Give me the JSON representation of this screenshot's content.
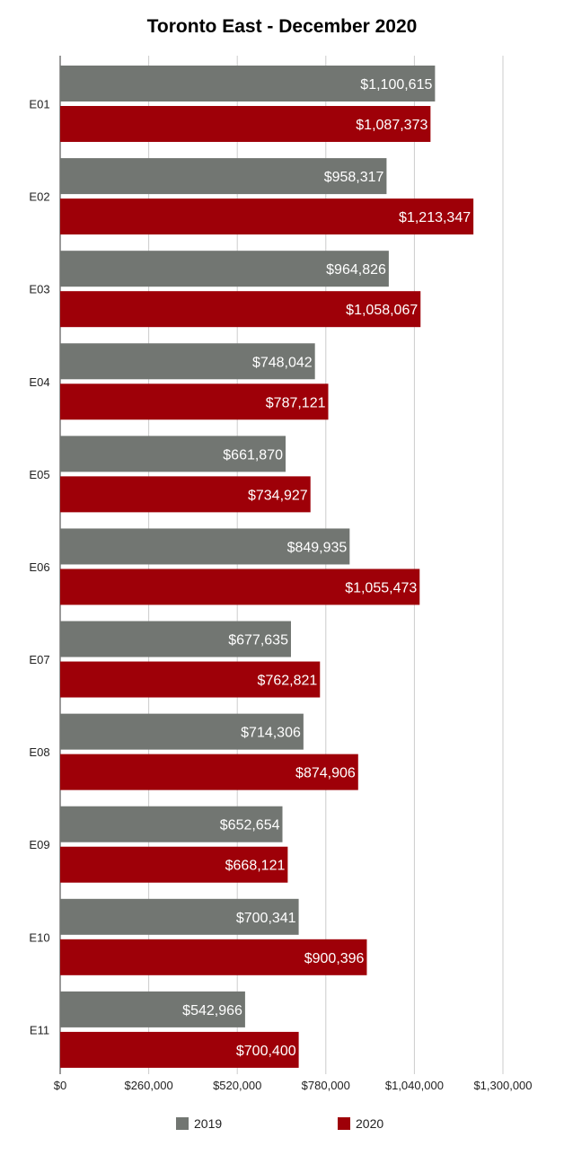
{
  "chart_data": {
    "type": "bar",
    "orientation": "horizontal",
    "title": "Toronto East - December 2020",
    "categories": [
      "E01",
      "E02",
      "E03",
      "E04",
      "E05",
      "E06",
      "E07",
      "E08",
      "E09",
      "E10",
      "E11"
    ],
    "series": [
      {
        "name": "2019",
        "color": "#727672",
        "values": [
          1100615,
          958317,
          964826,
          748042,
          661870,
          849935,
          677635,
          714306,
          652654,
          700341,
          542966
        ],
        "labels": [
          "$1,100,615",
          "$958,317",
          "$964,826",
          "$748,042",
          "$661,870",
          "$849,935",
          "$677,635",
          "$714,306",
          "$652,654",
          "$700,341",
          "$542,966"
        ]
      },
      {
        "name": "2020",
        "color": "#9e0008",
        "values": [
          1087373,
          1213347,
          1058067,
          787121,
          734927,
          1055473,
          762821,
          874906,
          668121,
          900396,
          700400
        ],
        "labels": [
          "$1,087,373",
          "$1,213,347",
          "$1,058,067",
          "$787,121",
          "$734,927",
          "$1,055,473",
          "$762,821",
          "$874,906",
          "$668,121",
          "$900,396",
          "$700,400"
        ]
      }
    ],
    "xlim": [
      0,
      1300000
    ],
    "xticks": [
      0,
      260000,
      520000,
      780000,
      1040000,
      1300000
    ],
    "xtick_labels": [
      "$0",
      "$260,000",
      "$520,000",
      "$780,000",
      "$1,040,000",
      "$1,300,000"
    ],
    "xlabel": "",
    "ylabel": "",
    "grid": true,
    "legend_position": "bottom"
  }
}
